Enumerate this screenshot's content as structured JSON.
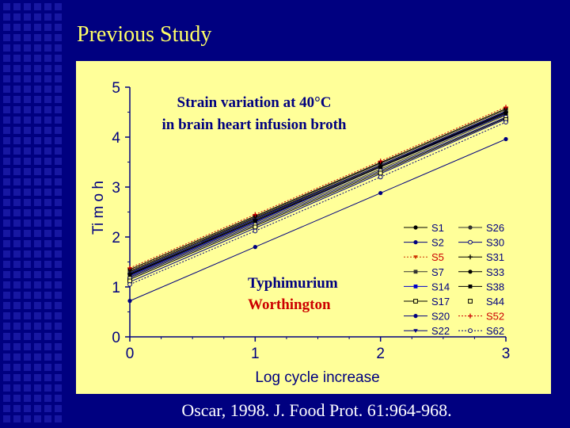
{
  "slide": {
    "title": "Previous Study",
    "citation": "Oscar, 1998.  J. Food Prot. 61:964-968."
  },
  "chart_data": {
    "type": "line",
    "title": "Strain variation at 40°C",
    "subtitle": "in brain heart infusion broth",
    "xlabel": "Log cycle increase",
    "ylabel": "Time (h)",
    "ylabel_printed": "Ti m o h",
    "xlim": [
      0,
      3
    ],
    "ylim": [
      0,
      5
    ],
    "xticks": [
      "0",
      "1",
      "2",
      "3"
    ],
    "yticks": [
      "0",
      "1",
      "2",
      "3",
      "4",
      "5"
    ],
    "grid": false,
    "legend_position": "bottom-right",
    "annotations": [
      {
        "text": "Typhimurium",
        "color": "#000080"
      },
      {
        "text": "Worthington",
        "color": "#cc0000"
      }
    ],
    "x": [
      0,
      1,
      2,
      3
    ],
    "series": [
      {
        "name": "S1",
        "color": "#000000",
        "marker": "dot",
        "line": "solid",
        "values": [
          1.3,
          2.38,
          3.44,
          4.52
        ]
      },
      {
        "name": "S2",
        "color": "#000080",
        "marker": "dot",
        "line": "solid",
        "values": [
          1.25,
          2.32,
          3.4,
          4.46
        ]
      },
      {
        "name": "S5",
        "color": "#cc3300",
        "marker": "tri",
        "line": "dotted",
        "values": [
          1.33,
          2.4,
          3.47,
          4.55
        ]
      },
      {
        "name": "S7",
        "color": "#333333",
        "marker": "square",
        "line": "solid",
        "values": [
          1.2,
          2.28,
          3.36,
          4.44
        ]
      },
      {
        "name": "S14",
        "color": "#0000cc",
        "marker": "square",
        "line": "solid",
        "values": [
          1.22,
          2.3,
          3.4,
          4.5
        ]
      },
      {
        "name": "S17",
        "color": "#000000",
        "marker": "osquare",
        "line": "solid",
        "values": [
          1.15,
          2.22,
          3.3,
          4.38
        ]
      },
      {
        "name": "S20",
        "color": "#000080",
        "marker": "dot",
        "line": "solid",
        "values": [
          1.28,
          2.36,
          3.44,
          4.52
        ]
      },
      {
        "name": "S22",
        "color": "#000080",
        "marker": "tri",
        "line": "solid",
        "values": [
          1.1,
          2.18,
          3.27,
          4.36
        ]
      },
      {
        "name": "S26",
        "color": "#333333",
        "marker": "dot",
        "line": "solid",
        "values": [
          1.32,
          2.4,
          3.47,
          4.55
        ]
      },
      {
        "name": "S30",
        "color": "#000080",
        "marker": "ocircle",
        "line": "solid",
        "values": [
          1.18,
          2.25,
          3.33,
          4.4
        ]
      },
      {
        "name": "S31",
        "color": "#000000",
        "marker": "plus",
        "line": "solid",
        "values": [
          1.26,
          2.34,
          3.42,
          4.5
        ]
      },
      {
        "name": "S33",
        "color": "#000000",
        "marker": "dot",
        "line": "solid",
        "values": [
          1.35,
          2.42,
          3.49,
          4.57
        ]
      },
      {
        "name": "S38",
        "color": "#000000",
        "marker": "square",
        "line": "solid",
        "values": [
          1.24,
          2.32,
          3.4,
          4.48
        ]
      },
      {
        "name": "S44",
        "color": "#000000",
        "marker": "osquare",
        "line": "none",
        "values": [
          1.12,
          2.2,
          3.28,
          4.35
        ]
      },
      {
        "name": "S52",
        "color": "#cc0000",
        "marker": "plus",
        "line": "dotted",
        "values": [
          1.38,
          2.45,
          3.52,
          4.6
        ]
      },
      {
        "name": "S62",
        "color": "#000080",
        "marker": "ocircle",
        "line": "dotted",
        "values": [
          1.05,
          2.12,
          3.2,
          4.3
        ]
      },
      {
        "name": "",
        "color": "#000080",
        "marker": "dot",
        "line": "solid",
        "values": [
          0.72,
          1.8,
          2.88,
          3.96
        ]
      }
    ]
  }
}
